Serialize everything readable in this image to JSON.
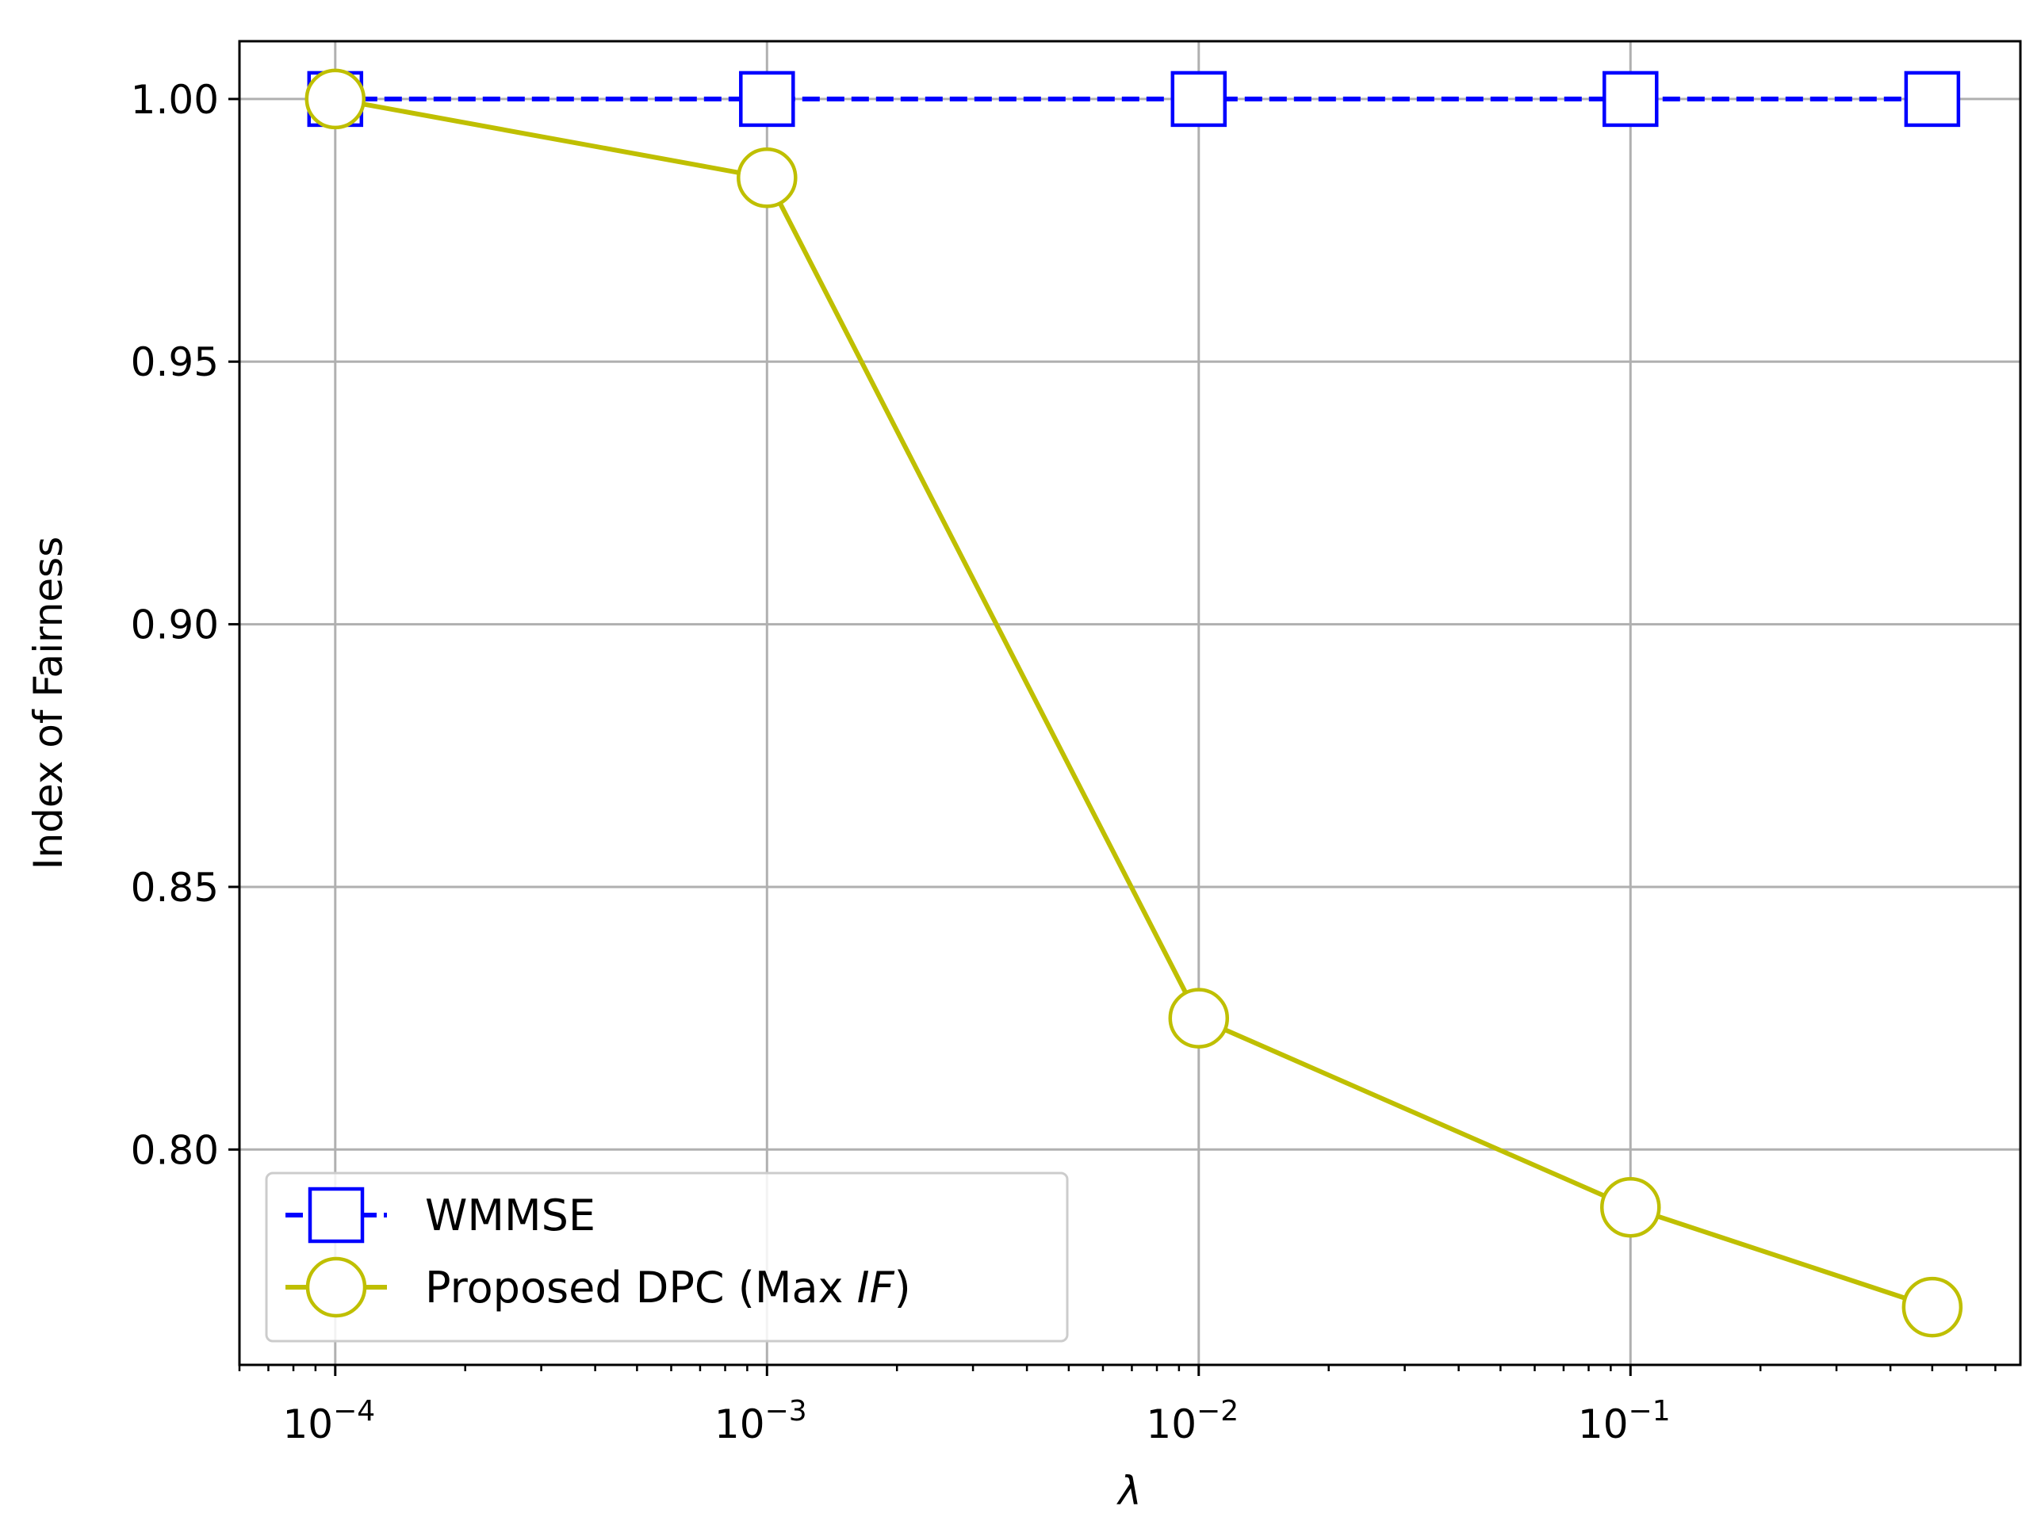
{
  "chart_data": {
    "type": "line",
    "xscale": "log",
    "x": [
      0.0001,
      0.001,
      0.01,
      0.1,
      0.5
    ],
    "xlim": [
      6e-05,
      0.8
    ],
    "ylim": [
      0.759,
      1.011
    ],
    "grid": true,
    "xlabel": "λ",
    "ylabel": "Index of Fairness",
    "x_ticks": [
      {
        "value": 0.0001,
        "base": "10",
        "exp": "−4"
      },
      {
        "value": 0.001,
        "base": "10",
        "exp": "−3"
      },
      {
        "value": 0.01,
        "base": "10",
        "exp": "−2"
      },
      {
        "value": 0.1,
        "base": "10",
        "exp": "−1"
      }
    ],
    "y_ticks": [
      {
        "value": 0.8,
        "label": "0.80"
      },
      {
        "value": 0.85,
        "label": "0.85"
      },
      {
        "value": 0.9,
        "label": "0.90"
      },
      {
        "value": 0.95,
        "label": "0.95"
      },
      {
        "value": 1.0,
        "label": "1.00"
      }
    ],
    "legend_position": "lower-left",
    "series": [
      {
        "name": "WMMSE",
        "values": [
          1.0,
          1.0,
          1.0,
          1.0,
          1.0
        ],
        "color": "#0000ff",
        "line_style": "dashed",
        "marker": "square"
      },
      {
        "name": "Proposed DPC (Max IF)",
        "name_parts": {
          "prefix": "Proposed DPC (Max ",
          "italic": "IF",
          "suffix": ")"
        },
        "values": [
          1.0,
          0.985,
          0.825,
          0.789,
          0.77
        ],
        "color": "#bfbf00",
        "line_style": "solid",
        "marker": "circle"
      }
    ]
  }
}
